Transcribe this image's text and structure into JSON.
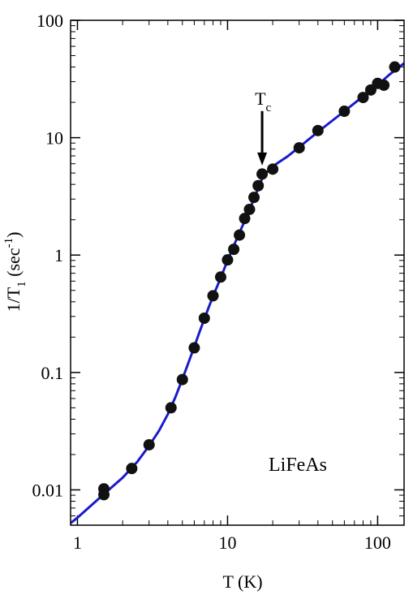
{
  "chart_data": {
    "type": "scatter",
    "xscale": "log",
    "yscale": "log",
    "xlim": [
      0.9,
      150
    ],
    "ylim": [
      0.005,
      100
    ],
    "x_ticks": [
      {
        "value": 1,
        "label": "1"
      },
      {
        "value": 10,
        "label": "10"
      },
      {
        "value": 100,
        "label": "100"
      }
    ],
    "y_ticks": [
      {
        "value": 0.01,
        "label": "0.01"
      },
      {
        "value": 0.1,
        "label": "0.1"
      },
      {
        "value": 1,
        "label": "1"
      },
      {
        "value": 10,
        "label": "10"
      },
      {
        "value": 100,
        "label": "100"
      }
    ],
    "xlabel": "T (K)",
    "ylabel": {
      "main": "1/T",
      "sub": "1",
      "unit_open": " (sec",
      "unit_sup": "-1",
      "unit_close": ")"
    },
    "sample_label": "LiFeAs",
    "annotation": {
      "text": "T",
      "sub": "c",
      "x": 17,
      "arrow_tip_y": 5.8
    },
    "colors": {
      "points": "#111111",
      "fit_line": "#1a1acc",
      "axes": "#000000"
    },
    "series": [
      {
        "type": "scatter",
        "points": [
          {
            "x": 1.5,
            "y": 0.0102
          },
          {
            "x": 1.5,
            "y": 0.0091
          },
          {
            "x": 2.3,
            "y": 0.0152
          },
          {
            "x": 3.0,
            "y": 0.0242
          },
          {
            "x": 4.2,
            "y": 0.05
          },
          {
            "x": 5.0,
            "y": 0.087
          },
          {
            "x": 6.0,
            "y": 0.162
          },
          {
            "x": 7.0,
            "y": 0.29
          },
          {
            "x": 8.0,
            "y": 0.45
          },
          {
            "x": 9.0,
            "y": 0.65
          },
          {
            "x": 10.0,
            "y": 0.91
          },
          {
            "x": 11.0,
            "y": 1.12
          },
          {
            "x": 12.0,
            "y": 1.48
          },
          {
            "x": 13.0,
            "y": 2.05
          },
          {
            "x": 14.0,
            "y": 2.45
          },
          {
            "x": 15.0,
            "y": 3.1
          },
          {
            "x": 16.0,
            "y": 3.9
          },
          {
            "x": 17.0,
            "y": 4.9
          },
          {
            "x": 20.0,
            "y": 5.4
          },
          {
            "x": 30.0,
            "y": 8.2
          },
          {
            "x": 40.0,
            "y": 11.5
          },
          {
            "x": 60.0,
            "y": 16.8
          },
          {
            "x": 80.0,
            "y": 22.0
          },
          {
            "x": 90.0,
            "y": 25.5
          },
          {
            "x": 100.0,
            "y": 29.0
          },
          {
            "x": 110.0,
            "y": 28.0
          },
          {
            "x": 130.0,
            "y": 40.0
          }
        ]
      },
      {
        "type": "line",
        "points": [
          {
            "x": 0.9,
            "y": 0.0052
          },
          {
            "x": 1.0,
            "y": 0.0058
          },
          {
            "x": 1.5,
            "y": 0.0092
          },
          {
            "x": 2.0,
            "y": 0.0127
          },
          {
            "x": 2.5,
            "y": 0.0173
          },
          {
            "x": 3.0,
            "y": 0.0237
          },
          {
            "x": 3.5,
            "y": 0.032
          },
          {
            "x": 4.0,
            "y": 0.044
          },
          {
            "x": 4.5,
            "y": 0.062
          },
          {
            "x": 5.0,
            "y": 0.088
          },
          {
            "x": 5.5,
            "y": 0.122
          },
          {
            "x": 6.0,
            "y": 0.165
          },
          {
            "x": 6.5,
            "y": 0.22
          },
          {
            "x": 7.0,
            "y": 0.285
          },
          {
            "x": 7.5,
            "y": 0.36
          },
          {
            "x": 8.0,
            "y": 0.445
          },
          {
            "x": 9.0,
            "y": 0.64
          },
          {
            "x": 10.0,
            "y": 0.9
          },
          {
            "x": 11.0,
            "y": 1.2
          },
          {
            "x": 12.0,
            "y": 1.55
          },
          {
            "x": 13.0,
            "y": 1.95
          },
          {
            "x": 14.0,
            "y": 2.45
          },
          {
            "x": 15.0,
            "y": 3.0
          },
          {
            "x": 16.0,
            "y": 3.7
          },
          {
            "x": 17.0,
            "y": 4.5
          },
          {
            "x": 18.0,
            "y": 5.0
          },
          {
            "x": 20.0,
            "y": 5.7
          },
          {
            "x": 25.0,
            "y": 6.9
          },
          {
            "x": 30.0,
            "y": 8.3
          },
          {
            "x": 40.0,
            "y": 11.2
          },
          {
            "x": 50.0,
            "y": 14.0
          },
          {
            "x": 60.0,
            "y": 16.8
          },
          {
            "x": 80.0,
            "y": 22.5
          },
          {
            "x": 100.0,
            "y": 28.0
          },
          {
            "x": 120.0,
            "y": 34.5
          },
          {
            "x": 150.0,
            "y": 43.0
          }
        ]
      }
    ]
  }
}
